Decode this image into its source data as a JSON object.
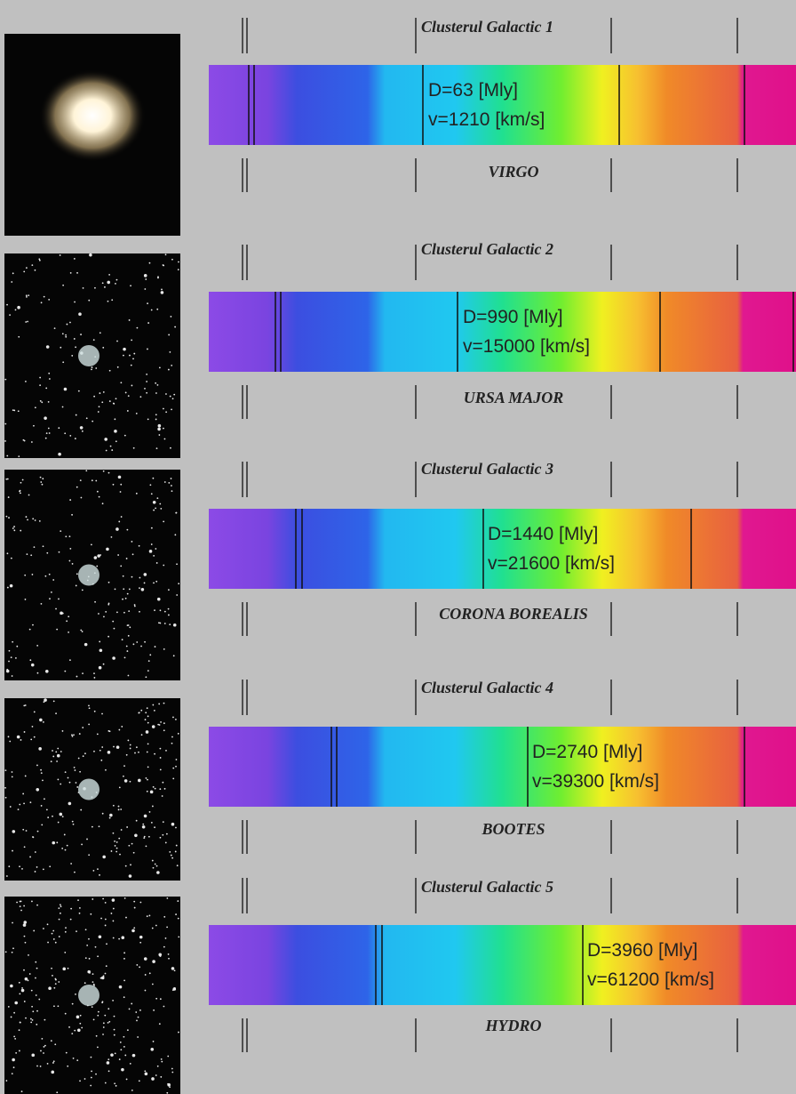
{
  "clusters": [
    {
      "title": "Clusterul Galactic 1",
      "name": "VIRGO",
      "distance": "D=63 [Mly]",
      "velocity": "v=1210 [km/s]"
    },
    {
      "title": "Clusterul Galactic 2",
      "name": "URSA MAJOR",
      "distance": "D=990 [Mly]",
      "velocity": "v=15000 [km/s]"
    },
    {
      "title": "Clusterul Galactic 3",
      "name": "CORONA BOREALIS",
      "distance": "D=1440 [Mly]",
      "velocity": "v=21600 [km/s]"
    },
    {
      "title": "Clusterul Galactic 4",
      "name": "BOOTES",
      "distance": "D=2740 [Mly]",
      "velocity": "v=39300 [km/s]"
    },
    {
      "title": "Clusterul Galactic 5",
      "name": "HYDRO",
      "distance": "D=3960 [Mly]",
      "velocity": "v=61200 [km/s]"
    }
  ]
}
